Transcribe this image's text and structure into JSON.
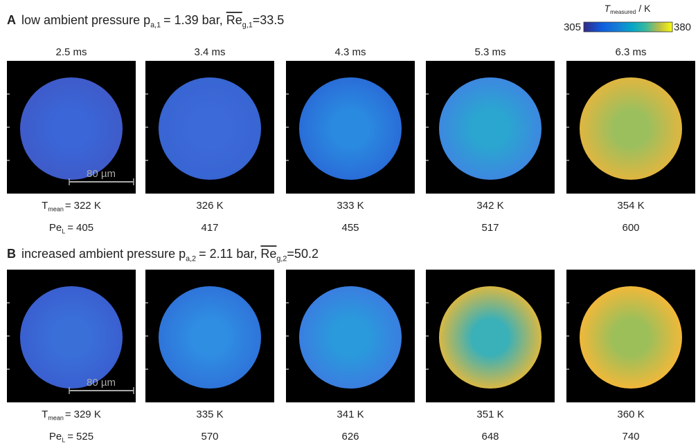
{
  "colorbar": {
    "symbol": "T",
    "subscript": "measured",
    "unit": "/ K",
    "min": 305,
    "max": 380
  },
  "times": [
    "2.5 ms",
    "3.4 ms",
    "4.3 ms",
    "5.3 ms",
    "6.3 ms"
  ],
  "scale_bar": "80 µm",
  "rows": [
    {
      "label": "A",
      "description": "low ambient pressure",
      "p_symbol": "p",
      "p_sub": "a,1",
      "p_value": "= 1.39 bar,",
      "re_symbol": "Re",
      "re_sub": "g,1",
      "re_value": "=33.5",
      "tmean_symbol": "T",
      "tmean_sub": "mean",
      "tmean_eq": "=",
      "tmean": [
        "322 K",
        "326 K",
        "333 K",
        "342 K",
        "354 K"
      ],
      "pe_symbol": "Pe",
      "pe_sub": "L",
      "pe_eq": "=",
      "pe": [
        405,
        417,
        455,
        517,
        600
      ]
    },
    {
      "label": "B",
      "description": "increased ambient pressure",
      "p_symbol": "p",
      "p_sub": "a,2",
      "p_value": "= 2.11 bar,",
      "re_symbol": "Re",
      "re_sub": "g,2",
      "re_value": "=50.2",
      "tmean_symbol": "T",
      "tmean_sub": "mean",
      "tmean_eq": "=",
      "tmean": [
        "329 K",
        "335 K",
        "341 K",
        "351 K",
        "360 K"
      ],
      "pe_symbol": "Pe",
      "pe_sub": "L",
      "pe_eq": "=",
      "pe": [
        525,
        570,
        626,
        648,
        740
      ]
    }
  ]
}
